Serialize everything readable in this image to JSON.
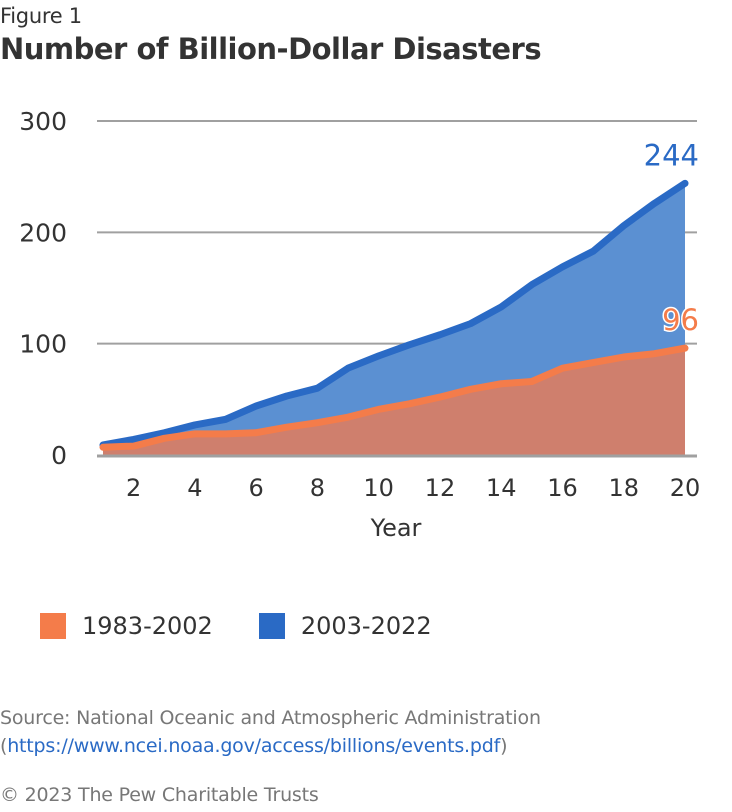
{
  "figure_label": "Figure 1",
  "chart_data": {
    "type": "area",
    "title": "Number of Billion-Dollar Disasters",
    "xlabel": "Year",
    "ylabel": "",
    "xlim": [
      1,
      20
    ],
    "ylim": [
      0,
      300
    ],
    "grid": true,
    "x": [
      1,
      2,
      3,
      4,
      5,
      6,
      7,
      8,
      9,
      10,
      11,
      12,
      13,
      14,
      15,
      16,
      17,
      18,
      19,
      20
    ],
    "x_ticks": [
      "2",
      "4",
      "6",
      "8",
      "10",
      "12",
      "14",
      "16",
      "18",
      "20"
    ],
    "y_ticks": [
      "0",
      "100",
      "200",
      "300"
    ],
    "series": [
      {
        "name": "2003-2022",
        "color": "#2a6ac5",
        "fill": "#5b90d2",
        "values": [
          9,
          14,
          20,
          27,
          32,
          44,
          53,
          60,
          78,
          89,
          99,
          108,
          118,
          133,
          153,
          169,
          183,
          206,
          226,
          244
        ],
        "end_label": "244"
      },
      {
        "name": "1983-2002",
        "color": "#f47c4a",
        "fill": "#cf7f6d",
        "values": [
          7,
          8,
          15,
          19,
          19,
          20,
          25,
          29,
          34,
          41,
          46,
          52,
          59,
          64,
          66,
          78,
          83,
          88,
          91,
          96
        ],
        "end_label": "96"
      }
    ],
    "legend": [
      {
        "label": "1983-2002",
        "color": "#f47c4a"
      },
      {
        "label": "2003-2022",
        "color": "#2a6ac5"
      }
    ],
    "legend_position": "bottom-left"
  },
  "footer": {
    "source_prefix": "Source: National Oceanic and Atmospheric Administration (",
    "source_link": "https://www.ncei.noaa.gov/access/billions/events.pdf",
    "source_suffix": ")",
    "copyright": "© 2023 The Pew Charitable Trusts"
  }
}
